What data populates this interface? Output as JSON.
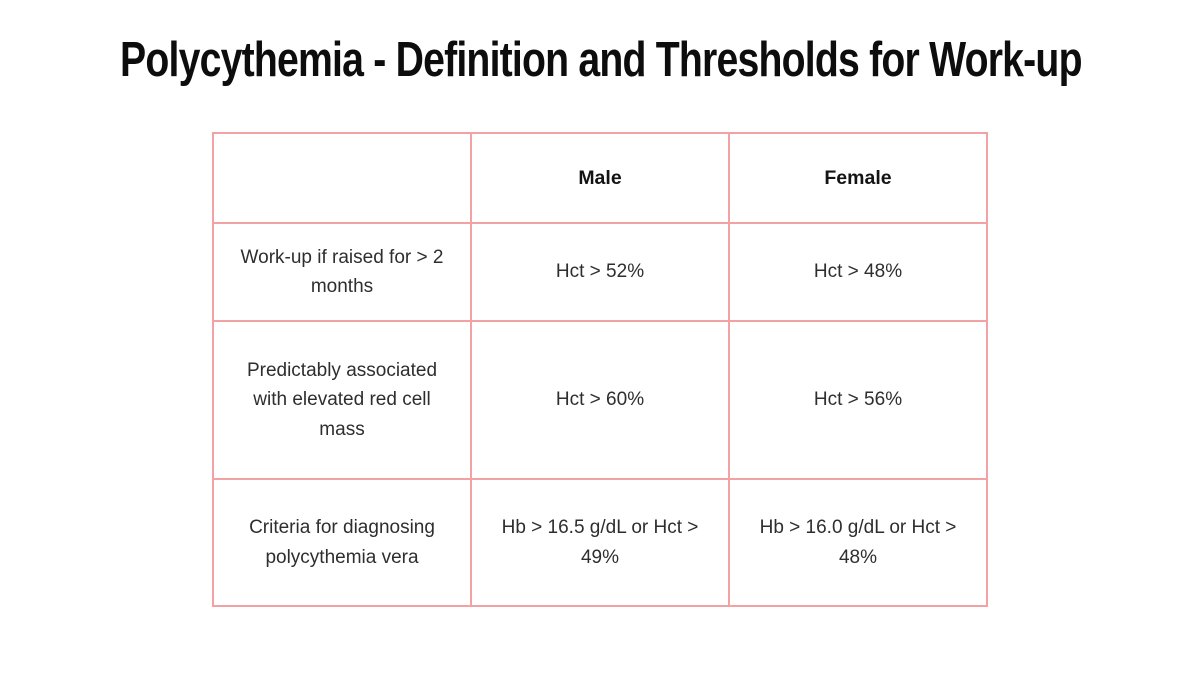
{
  "slide": {
    "title": "Polycythemia - Definition and Thresholds for Work-up",
    "colors": {
      "table_border": "#F2A2A2",
      "title_text": "#0d0d0d",
      "body_text": "#2e2e2e",
      "background": "#ffffff"
    },
    "table": {
      "headers": {
        "corner": "",
        "male": "Male",
        "female": "Female"
      },
      "rows": [
        {
          "label": "Work-up if raised for > 2 months",
          "male": "Hct > 52%",
          "female": "Hct > 48%"
        },
        {
          "label": "Predictably associated with elevated red cell mass",
          "male": "Hct > 60%",
          "female": "Hct > 56%"
        },
        {
          "label": "Criteria for diagnosing polycythemia vera",
          "male": "Hb > 16.5 g/dL or Hct > 49%",
          "female": "Hb > 16.0 g/dL or Hct > 48%"
        }
      ]
    }
  }
}
